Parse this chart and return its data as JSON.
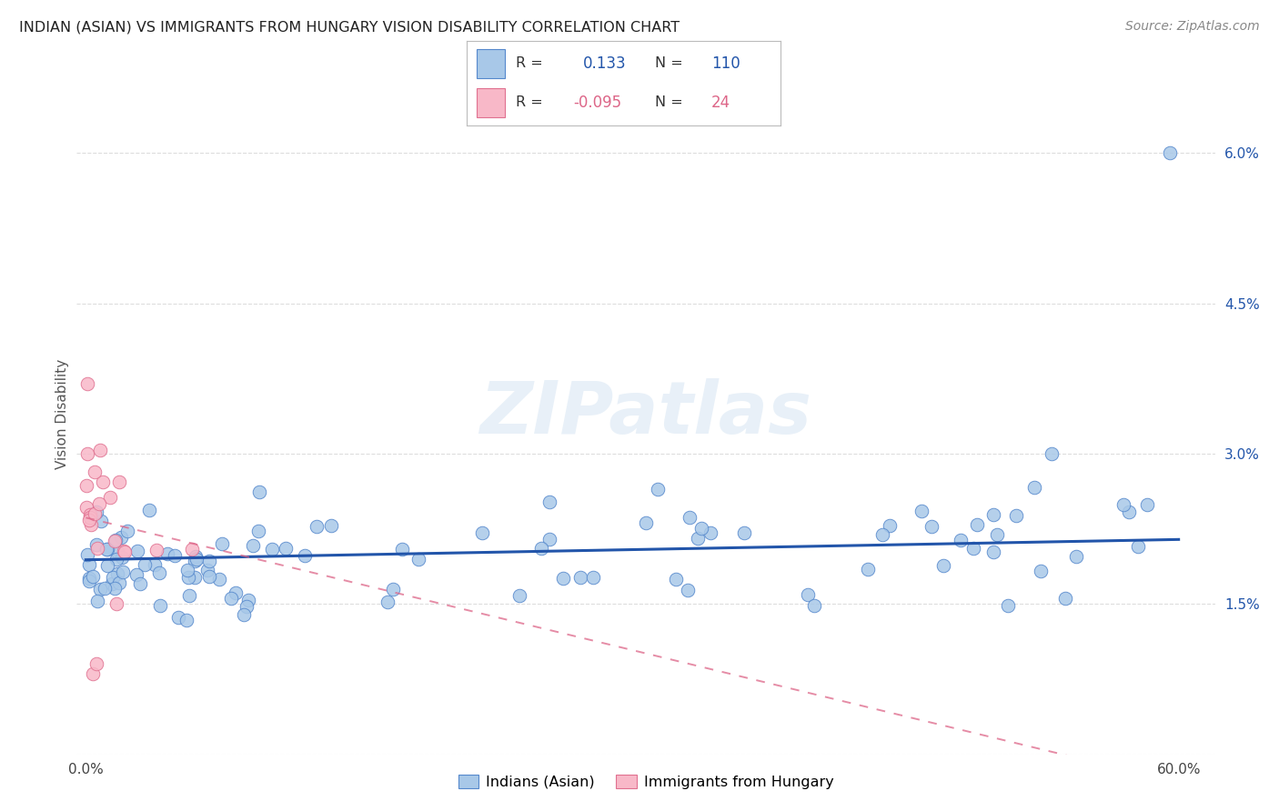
{
  "title": "INDIAN (ASIAN) VS IMMIGRANTS FROM HUNGARY VISION DISABILITY CORRELATION CHART",
  "source": "Source: ZipAtlas.com",
  "ylabel": "Vision Disability",
  "xlim": [
    -0.005,
    0.62
  ],
  "ylim": [
    0.0,
    0.068
  ],
  "ytick_vals": [
    0.0,
    0.015,
    0.03,
    0.045,
    0.06
  ],
  "ytick_labels": [
    "",
    "1.5%",
    "3.0%",
    "4.5%",
    "6.0%"
  ],
  "xtick_vals": [
    0.0,
    0.1,
    0.2,
    0.3,
    0.4,
    0.5,
    0.6
  ],
  "xtick_labels": [
    "0.0%",
    "",
    "",
    "",
    "",
    "",
    "60.0%"
  ],
  "blue_color": "#a8c8e8",
  "blue_edge_color": "#5588cc",
  "blue_line_color": "#2255aa",
  "pink_color": "#f8b8c8",
  "pink_edge_color": "#e07090",
  "pink_line_color": "#dd6688",
  "r_blue": 0.133,
  "n_blue": 110,
  "r_pink": -0.095,
  "n_pink": 24,
  "legend_label_blue": "Indians (Asian)",
  "legend_label_pink": "Immigrants from Hungary",
  "watermark": "ZIPatlas",
  "grid_color": "#dddddd",
  "title_color": "#222222",
  "source_color": "#888888",
  "ylabel_color": "#555555"
}
